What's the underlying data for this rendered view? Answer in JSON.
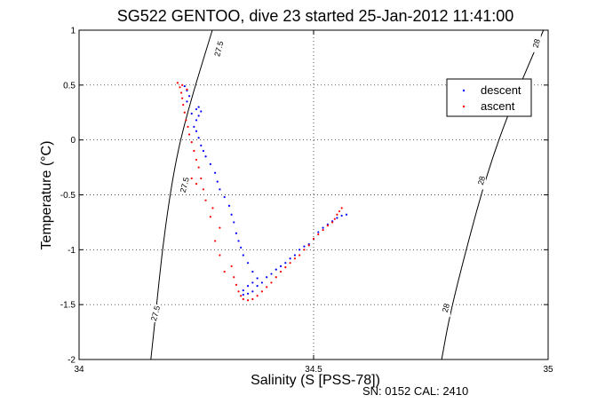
{
  "chart_data": {
    "type": "scatter",
    "title": "SG522 GENTOO, dive 23 started 25-Jan-2012 11:41:00",
    "xlabel": "Salinity (S [PSS-78])",
    "ylabel": "Temperature (°C)",
    "xlim": [
      34,
      35
    ],
    "ylim": [
      -2,
      1
    ],
    "x_ticks": [
      34,
      34.5,
      35
    ],
    "x_tick_labels": [
      "34",
      "34.5",
      "35"
    ],
    "y_ticks": [
      -2,
      -1.5,
      -1,
      -0.5,
      0,
      0.5,
      1
    ],
    "y_tick_labels": [
      "-2",
      "-1.5",
      "-1",
      "-0.5",
      "0",
      "0.5",
      "1"
    ],
    "grid": true,
    "legend_position": "top-right",
    "footer": "SN: 0152  CAL: 2410",
    "colors": {
      "descent": "#0000ff",
      "ascent": "#ff0000",
      "contour": "#000000"
    },
    "series": [
      {
        "name": "descent",
        "color": "#0000ff",
        "marker": "dot",
        "points": [
          [
            34.57,
            -0.68
          ],
          [
            34.56,
            -0.69
          ],
          [
            34.55,
            -0.71
          ],
          [
            34.54,
            -0.74
          ],
          [
            34.53,
            -0.77
          ],
          [
            34.52,
            -0.8
          ],
          [
            34.51,
            -0.84
          ],
          [
            34.5,
            -0.9
          ],
          [
            34.49,
            -0.95
          ],
          [
            34.48,
            -0.97
          ],
          [
            34.47,
            -1.0
          ],
          [
            34.46,
            -1.05
          ],
          [
            34.45,
            -1.08
          ],
          [
            34.44,
            -1.12
          ],
          [
            34.43,
            -1.15
          ],
          [
            34.42,
            -1.18
          ],
          [
            34.41,
            -1.22
          ],
          [
            34.4,
            -1.25
          ],
          [
            34.39,
            -1.3
          ],
          [
            34.38,
            -1.33
          ],
          [
            34.37,
            -1.38
          ],
          [
            34.36,
            -1.4
          ],
          [
            34.35,
            -1.41
          ],
          [
            34.35,
            -1.37
          ],
          [
            34.36,
            -1.33
          ],
          [
            34.37,
            -1.3
          ],
          [
            34.38,
            -1.26
          ],
          [
            34.37,
            -1.2
          ],
          [
            34.36,
            -1.12
          ],
          [
            34.35,
            -1.05
          ],
          [
            34.345,
            -0.98
          ],
          [
            34.34,
            -0.92
          ],
          [
            34.335,
            -0.85
          ],
          [
            34.33,
            -0.75
          ],
          [
            34.325,
            -0.68
          ],
          [
            34.32,
            -0.6
          ],
          [
            34.31,
            -0.52
          ],
          [
            34.3,
            -0.45
          ],
          [
            34.295,
            -0.38
          ],
          [
            34.29,
            -0.3
          ],
          [
            34.28,
            -0.22
          ],
          [
            34.27,
            -0.15
          ],
          [
            34.265,
            -0.1
          ],
          [
            34.26,
            -0.05
          ],
          [
            34.255,
            0.02
          ],
          [
            34.25,
            0.08
          ],
          [
            34.245,
            0.12
          ],
          [
            34.25,
            0.18
          ],
          [
            34.255,
            0.22
          ],
          [
            34.26,
            0.26
          ],
          [
            34.255,
            0.3
          ],
          [
            34.25,
            0.28
          ],
          [
            34.24,
            0.24
          ],
          [
            34.23,
            0.35
          ],
          [
            34.235,
            0.4
          ],
          [
            34.23,
            0.45
          ],
          [
            34.225,
            0.49
          ]
        ]
      },
      {
        "name": "ascent",
        "color": "#ff0000",
        "marker": "dot",
        "points": [
          [
            34.56,
            -0.62
          ],
          [
            34.555,
            -0.65
          ],
          [
            34.55,
            -0.68
          ],
          [
            34.545,
            -0.72
          ],
          [
            34.54,
            -0.75
          ],
          [
            34.53,
            -0.78
          ],
          [
            34.52,
            -0.82
          ],
          [
            34.51,
            -0.86
          ],
          [
            34.5,
            -0.9
          ],
          [
            34.49,
            -0.96
          ],
          [
            34.48,
            -1.0
          ],
          [
            34.47,
            -1.05
          ],
          [
            34.46,
            -1.08
          ],
          [
            34.45,
            -1.12
          ],
          [
            34.44,
            -1.16
          ],
          [
            34.43,
            -1.2
          ],
          [
            34.42,
            -1.25
          ],
          [
            34.41,
            -1.3
          ],
          [
            34.4,
            -1.34
          ],
          [
            34.39,
            -1.38
          ],
          [
            34.38,
            -1.42
          ],
          [
            34.37,
            -1.45
          ],
          [
            34.36,
            -1.46
          ],
          [
            34.35,
            -1.45
          ],
          [
            34.345,
            -1.42
          ],
          [
            34.34,
            -1.38
          ],
          [
            34.335,
            -1.32
          ],
          [
            34.33,
            -1.25
          ],
          [
            34.325,
            -1.15
          ],
          [
            34.31,
            -1.2
          ],
          [
            34.3,
            -1.05
          ],
          [
            34.29,
            -0.92
          ],
          [
            34.3,
            -0.8
          ],
          [
            34.28,
            -0.7
          ],
          [
            34.285,
            -0.62
          ],
          [
            34.27,
            -0.55
          ],
          [
            34.265,
            -0.45
          ],
          [
            34.26,
            -0.35
          ],
          [
            34.255,
            -0.25
          ],
          [
            34.25,
            -0.18
          ],
          [
            34.245,
            -0.1
          ],
          [
            34.24,
            -0.02
          ],
          [
            34.235,
            0.05
          ],
          [
            34.232,
            0.12
          ],
          [
            34.228,
            0.18
          ],
          [
            34.225,
            0.25
          ],
          [
            34.222,
            0.32
          ],
          [
            34.22,
            0.38
          ],
          [
            34.218,
            0.43
          ],
          [
            34.215,
            0.48
          ],
          [
            34.21,
            0.52
          ],
          [
            34.22,
            0.5
          ],
          [
            34.23,
            0.46
          ],
          [
            34.24,
            -0.35
          ],
          [
            34.25,
            -0.4
          ]
        ]
      }
    ],
    "contours": [
      {
        "label": "27.5",
        "points": [
          [
            34.284,
            1.0
          ],
          [
            34.234,
            0.3
          ],
          [
            34.205,
            -0.2
          ],
          [
            34.18,
            -0.9
          ],
          [
            34.163,
            -1.6
          ],
          [
            34.153,
            -2.0
          ]
        ],
        "label_positions": [
          [
            34.298,
            0.83
          ],
          [
            34.225,
            -0.41
          ],
          [
            34.163,
            -1.58
          ]
        ]
      },
      {
        "label": "28",
        "points": [
          [
            34.99,
            1.0
          ],
          [
            34.92,
            0.3
          ],
          [
            34.87,
            -0.3
          ],
          [
            34.825,
            -1.0
          ],
          [
            34.79,
            -1.6
          ],
          [
            34.773,
            -2.0
          ]
        ],
        "label_positions": [
          [
            34.975,
            0.88
          ],
          [
            34.858,
            -0.37
          ],
          [
            34.782,
            -1.53
          ]
        ]
      }
    ]
  }
}
